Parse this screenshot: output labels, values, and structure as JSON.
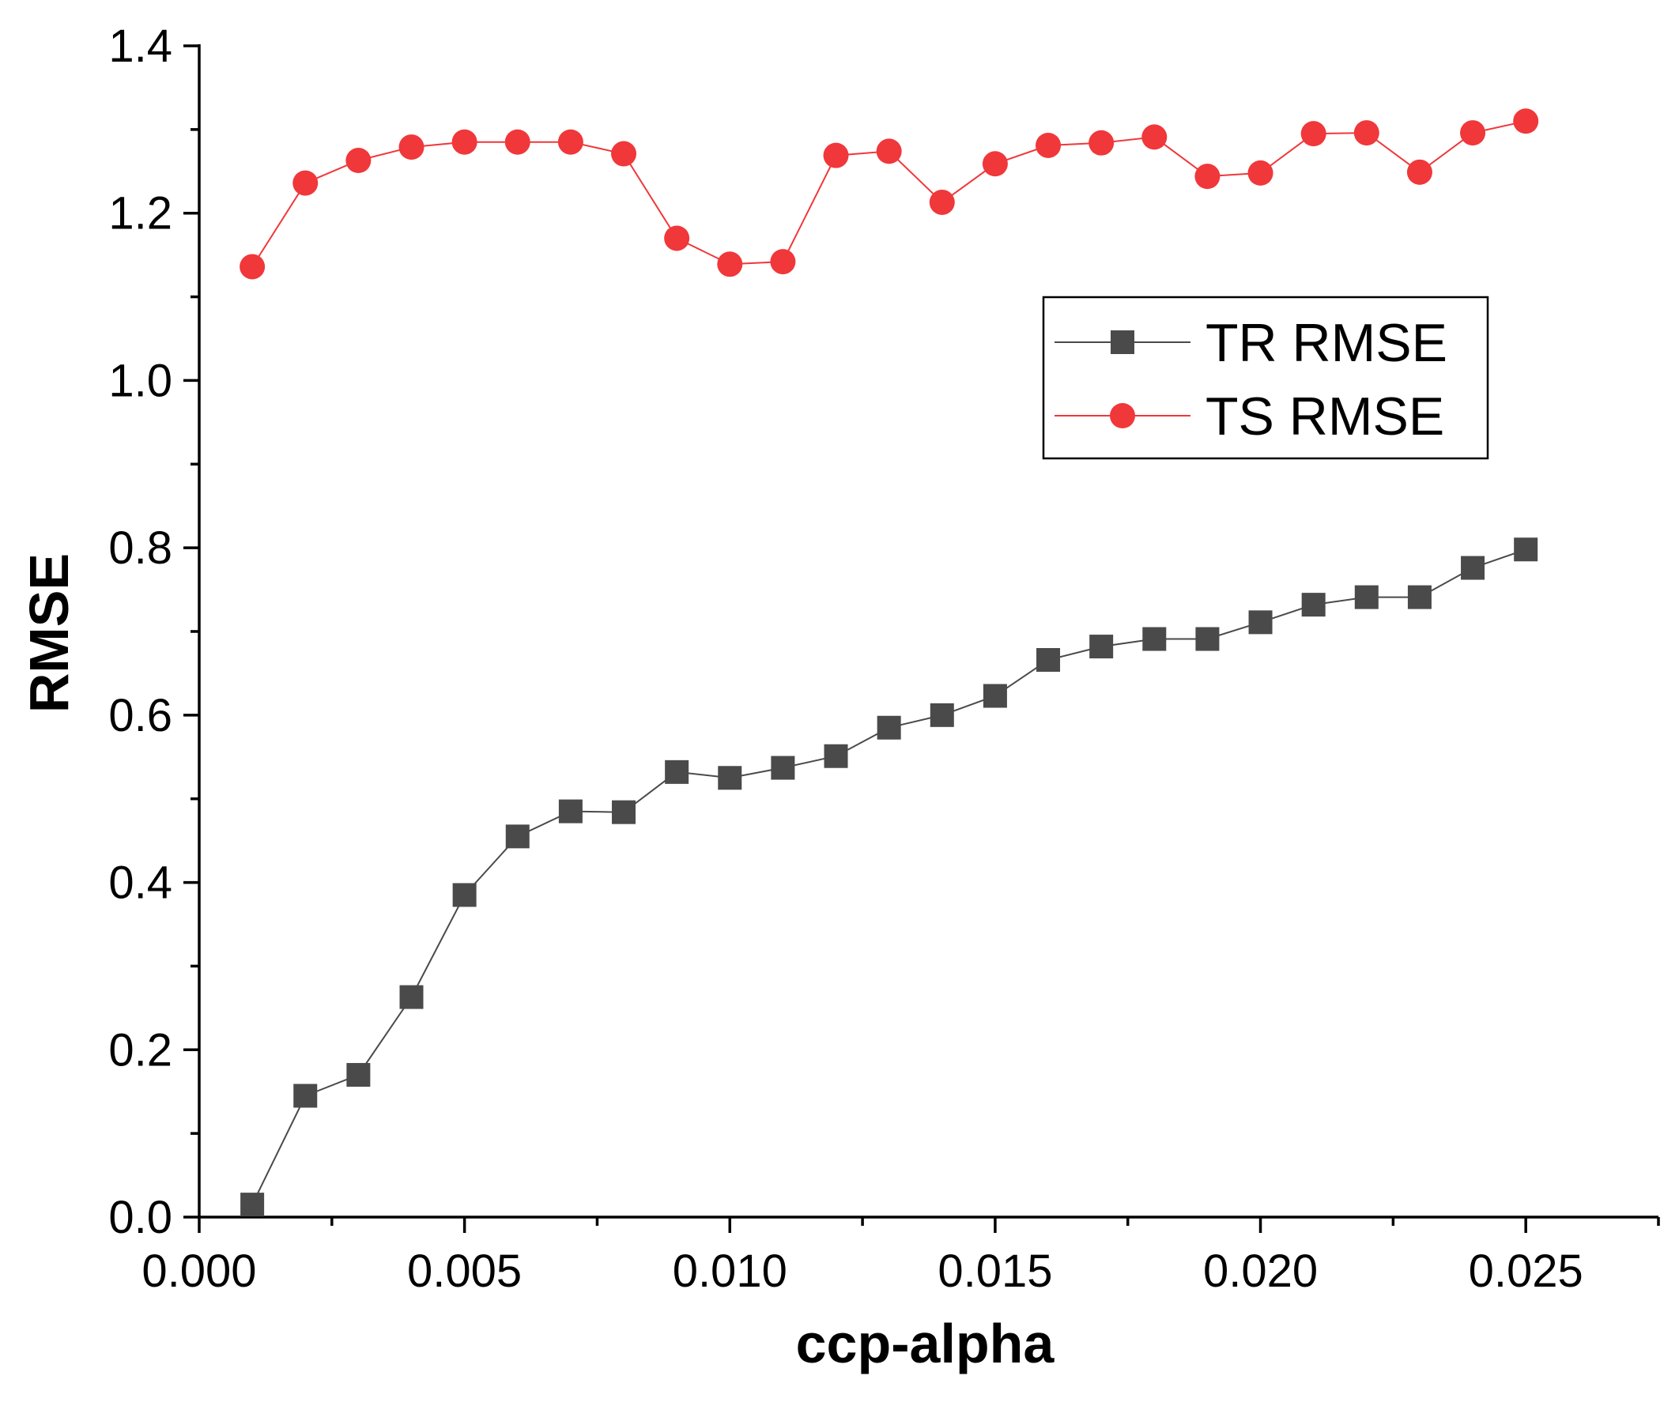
{
  "chart_data": {
    "type": "line",
    "title": "",
    "xlabel": "ccp-alpha",
    "ylabel": "RMSE",
    "xlim": [
      0.0,
      0.0275
    ],
    "ylim": [
      0.0,
      1.4
    ],
    "x_ticks": [
      "0.000",
      "0.005",
      "0.010",
      "0.015",
      "0.020",
      "0.025"
    ],
    "y_ticks": [
      "0.0",
      "0.2",
      "0.4",
      "0.6",
      "0.8",
      "1.0",
      "1.2",
      "1.4"
    ],
    "x": [
      0.001,
      0.002,
      0.003,
      0.004,
      0.005,
      0.006,
      0.007,
      0.008,
      0.009,
      0.01,
      0.011,
      0.012,
      0.013,
      0.014,
      0.015,
      0.016,
      0.017,
      0.018,
      0.019,
      0.02,
      0.021,
      0.022,
      0.023,
      0.024,
      0.025
    ],
    "grid": false,
    "legend_position": "upper-right",
    "series": [
      {
        "name": "TR RMSE",
        "marker": "square",
        "color": "#4a4a4a",
        "values": [
          0.015,
          0.145,
          0.17,
          0.263,
          0.385,
          0.455,
          0.485,
          0.484,
          0.532,
          0.525,
          0.537,
          0.551,
          0.585,
          0.6,
          0.623,
          0.666,
          0.682,
          0.691,
          0.691,
          0.711,
          0.732,
          0.741,
          0.741,
          0.776,
          0.798
        ]
      },
      {
        "name": "TS RMSE",
        "marker": "circle",
        "color": "#f0373a",
        "values": [
          1.136,
          1.236,
          1.263,
          1.279,
          1.285,
          1.285,
          1.285,
          1.271,
          1.17,
          1.139,
          1.142,
          1.269,
          1.274,
          1.213,
          1.259,
          1.281,
          1.284,
          1.291,
          1.244,
          1.248,
          1.295,
          1.296,
          1.249,
          1.296,
          1.31
        ]
      }
    ]
  }
}
